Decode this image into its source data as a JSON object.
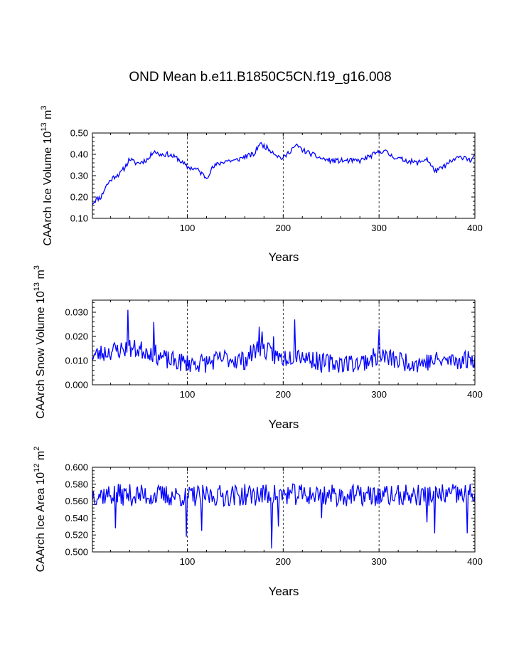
{
  "title": "OND Mean b.e11.B1850C5CN.f19_g16.008",
  "colors": {
    "series": "#0000ff",
    "axis": "#000000"
  },
  "chart_data": [
    {
      "type": "line",
      "ylabel_main": "CAArch Ice Volume 10",
      "ylabel_exp": "13",
      "ylabel_unit": " m",
      "ylabel_unit_exp": "3",
      "xlabel": "Years",
      "xlim": [
        1,
        400
      ],
      "ylim": [
        0.1,
        0.5
      ],
      "xticks": [
        100,
        200,
        300,
        400
      ],
      "xtick_labels": [
        "100",
        "200",
        "300",
        "400"
      ],
      "yticks": [
        0.1,
        0.2,
        0.3,
        0.4,
        0.5
      ],
      "ytick_labels": [
        "0.10",
        "0.20",
        "0.30",
        "0.40",
        "0.50"
      ],
      "grid_x": [
        100,
        200,
        300
      ],
      "anchors": [
        [
          1,
          0.17
        ],
        [
          5,
          0.19
        ],
        [
          10,
          0.2
        ],
        [
          15,
          0.25
        ],
        [
          20,
          0.28
        ],
        [
          25,
          0.3
        ],
        [
          30,
          0.31
        ],
        [
          35,
          0.34
        ],
        [
          40,
          0.38
        ],
        [
          45,
          0.36
        ],
        [
          50,
          0.36
        ],
        [
          55,
          0.37
        ],
        [
          60,
          0.38
        ],
        [
          65,
          0.42
        ],
        [
          70,
          0.4
        ],
        [
          80,
          0.4
        ],
        [
          90,
          0.38
        ],
        [
          100,
          0.34
        ],
        [
          110,
          0.33
        ],
        [
          115,
          0.31
        ],
        [
          120,
          0.29
        ],
        [
          125,
          0.33
        ],
        [
          130,
          0.35
        ],
        [
          140,
          0.37
        ],
        [
          150,
          0.37
        ],
        [
          160,
          0.39
        ],
        [
          170,
          0.4
        ],
        [
          175,
          0.45
        ],
        [
          180,
          0.44
        ],
        [
          190,
          0.41
        ],
        [
          195,
          0.39
        ],
        [
          200,
          0.38
        ],
        [
          210,
          0.43
        ],
        [
          215,
          0.44
        ],
        [
          220,
          0.42
        ],
        [
          230,
          0.4
        ],
        [
          240,
          0.38
        ],
        [
          250,
          0.37
        ],
        [
          260,
          0.37
        ],
        [
          270,
          0.37
        ],
        [
          280,
          0.37
        ],
        [
          290,
          0.39
        ],
        [
          300,
          0.41
        ],
        [
          305,
          0.42
        ],
        [
          310,
          0.4
        ],
        [
          320,
          0.38
        ],
        [
          330,
          0.37
        ],
        [
          340,
          0.36
        ],
        [
          350,
          0.38
        ],
        [
          355,
          0.34
        ],
        [
          360,
          0.32
        ],
        [
          370,
          0.35
        ],
        [
          380,
          0.38
        ],
        [
          390,
          0.39
        ],
        [
          395,
          0.37
        ],
        [
          400,
          0.39
        ]
      ],
      "noise_amp": 0.012,
      "spikes": [],
      "seed": 11
    },
    {
      "type": "line",
      "ylabel_main": "CAArch Snow Volume 10",
      "ylabel_exp": "13",
      "ylabel_unit": " m",
      "ylabel_unit_exp": "3",
      "xlabel": "Years",
      "xlim": [
        1,
        400
      ],
      "ylim": [
        0.0,
        0.035
      ],
      "xticks": [
        100,
        200,
        300,
        400
      ],
      "xtick_labels": [
        "100",
        "200",
        "300",
        "400"
      ],
      "yticks": [
        0.0,
        0.01,
        0.02,
        0.03
      ],
      "ytick_labels": [
        "0.000",
        "0.010",
        "0.020",
        "0.030"
      ],
      "grid_x": [
        100,
        200,
        300
      ],
      "anchors": [
        [
          1,
          0.012
        ],
        [
          20,
          0.014
        ],
        [
          40,
          0.015
        ],
        [
          60,
          0.014
        ],
        [
          80,
          0.01
        ],
        [
          100,
          0.009
        ],
        [
          120,
          0.009
        ],
        [
          140,
          0.011
        ],
        [
          160,
          0.01
        ],
        [
          175,
          0.016
        ],
        [
          190,
          0.012
        ],
        [
          200,
          0.011
        ],
        [
          215,
          0.013
        ],
        [
          240,
          0.009
        ],
        [
          260,
          0.009
        ],
        [
          280,
          0.009
        ],
        [
          300,
          0.012
        ],
        [
          320,
          0.01
        ],
        [
          340,
          0.009
        ],
        [
          360,
          0.01
        ],
        [
          380,
          0.01
        ],
        [
          400,
          0.011
        ]
      ],
      "noise_amp": 0.004,
      "spikes": [
        [
          38,
          0.031
        ],
        [
          65,
          0.026
        ],
        [
          175,
          0.024
        ],
        [
          178,
          0.022
        ],
        [
          190,
          0.02
        ],
        [
          212,
          0.027
        ],
        [
          300,
          0.023
        ]
      ],
      "seed": 23
    },
    {
      "type": "line",
      "ylabel_main": "CAArch Ice Area 10",
      "ylabel_exp": "12",
      "ylabel_unit": " m",
      "ylabel_unit_exp": "2",
      "xlabel": "Years",
      "xlim": [
        1,
        400
      ],
      "ylim": [
        0.5,
        0.6
      ],
      "xticks": [
        100,
        200,
        300,
        400
      ],
      "xtick_labels": [
        "100",
        "200",
        "300",
        "400"
      ],
      "yticks": [
        0.5,
        0.52,
        0.54,
        0.56,
        0.58,
        0.6
      ],
      "ytick_labels": [
        "0.500",
        "0.520",
        "0.540",
        "0.560",
        "0.580",
        "0.600"
      ],
      "grid_x": [
        100,
        200,
        300
      ],
      "anchors": [
        [
          1,
          0.568
        ],
        [
          100,
          0.566
        ],
        [
          200,
          0.568
        ],
        [
          300,
          0.566
        ],
        [
          400,
          0.568
        ]
      ],
      "noise_amp": 0.013,
      "spikes": [
        [
          25,
          0.528
        ],
        [
          99,
          0.518
        ],
        [
          115,
          0.525
        ],
        [
          188,
          0.504
        ],
        [
          195,
          0.53
        ],
        [
          240,
          0.54
        ],
        [
          350,
          0.535
        ],
        [
          358,
          0.522
        ],
        [
          392,
          0.522
        ]
      ],
      "seed": 37
    }
  ]
}
